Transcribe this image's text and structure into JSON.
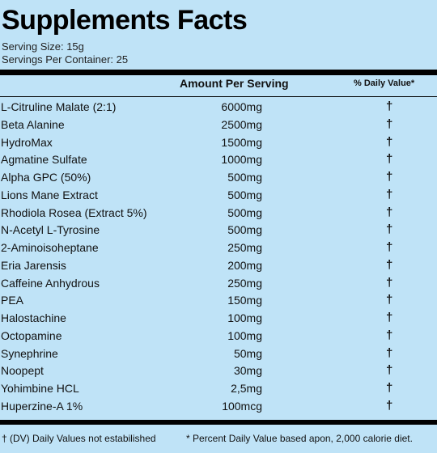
{
  "title": "Supplements Facts",
  "serving_size": "Serving Size: 15g",
  "servings_per_container": "Servings Per Container: 25",
  "columns": {
    "amount": "Amount Per Serving",
    "daily_value": "% Daily Value*"
  },
  "rows": [
    {
      "name": "L-Citruline Malate (2:1)",
      "amount": "6000mg",
      "dv": "†"
    },
    {
      "name": "Beta Alanine",
      "amount": "2500mg",
      "dv": "†"
    },
    {
      "name": "HydroMax",
      "amount": "1500mg",
      "dv": "†"
    },
    {
      "name": "Agmatine Sulfate",
      "amount": "1000mg",
      "dv": "†"
    },
    {
      "name": "Alpha GPC (50%)",
      "amount": "500mg",
      "dv": "†"
    },
    {
      "name": "Lions Mane Extract",
      "amount": "500mg",
      "dv": "†"
    },
    {
      "name": "Rhodiola Rosea (Extract 5%)",
      "amount": "500mg",
      "dv": "†"
    },
    {
      "name": "N-Acetyl L-Tyrosine",
      "amount": "500mg",
      "dv": "†"
    },
    {
      "name": "2-Aminoisoheptane",
      "amount": "250mg",
      "dv": "†"
    },
    {
      "name": "Eria Jarensis",
      "amount": "200mg",
      "dv": "†"
    },
    {
      "name": "Caffeine Anhydrous",
      "amount": "250mg",
      "dv": "†"
    },
    {
      "name": "PEA",
      "amount": "150mg",
      "dv": "†"
    },
    {
      "name": "Halostachine",
      "amount": "100mg",
      "dv": "†"
    },
    {
      "name": "Octopamine",
      "amount": "100mg",
      "dv": "†"
    },
    {
      "name": "Synephrine",
      "amount": "50mg",
      "dv": "†"
    },
    {
      "name": "Noopept",
      "amount": "30mg",
      "dv": "†"
    },
    {
      "name": "Yohimbine HCL",
      "amount": "2,5mg",
      "dv": "†"
    },
    {
      "name": "Huperzine-A 1%",
      "amount": "100mcg",
      "dv": "†"
    }
  ],
  "footnote_left": "† (DV) Daily Values not estabilished",
  "footnote_right": "* Percent Daily Value based apon, 2,000 calorie diet.",
  "colors": {
    "background": "#bfe3f7",
    "text": "#111111",
    "rules": "#000000"
  }
}
